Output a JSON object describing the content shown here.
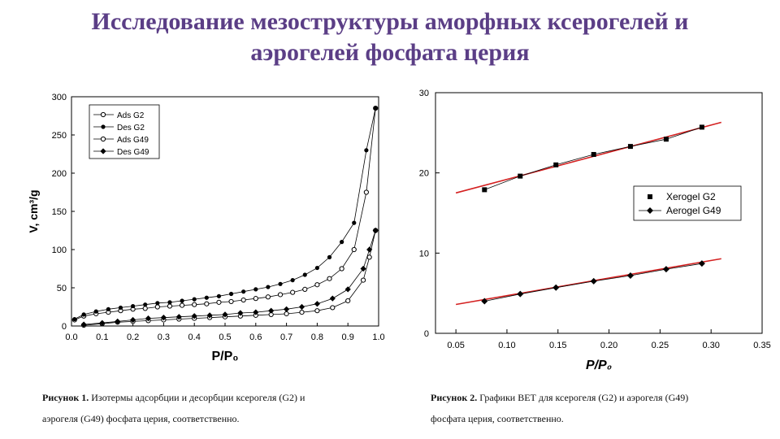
{
  "slide": {
    "title_line1": "Исследование мезоструктуры аморфных ксерогелей и",
    "title_line2": "аэрогелей фосфата церия",
    "accent_color": "#5b3e86"
  },
  "captions": {
    "fig1_label": "Рисунок 1.",
    "fig1_text": "Изотермы адсорбции и десорбции ксерогеля (G2) и",
    "fig1_text2": "аэрогеля (G49) фосфата церия, соответственно.",
    "fig2_label": "Рисунок 2.",
    "fig2_text": "Графики ВЕТ для ксерогеля (G2) и аэрогеля  (G49)",
    "fig2_text2": "фосфата церия, соответственно."
  },
  "chart_data": [
    {
      "type": "line",
      "xlabel": "P/P₀",
      "ylabel": "V, cm³/g",
      "xlim": [
        0.0,
        1.0
      ],
      "ylim": [
        0,
        300
      ],
      "xticks": [
        "0.0",
        "0.1",
        "0.2",
        "0.3",
        "0.4",
        "0.5",
        "0.6",
        "0.7",
        "0.8",
        "0.9",
        "1.0"
      ],
      "yticks": [
        "0",
        "50",
        "100",
        "150",
        "200",
        "250",
        "300"
      ],
      "legend_position": "top-left",
      "series": [
        {
          "name": "Ads G2",
          "marker": "open-circle",
          "x": [
            0.01,
            0.04,
            0.08,
            0.12,
            0.16,
            0.2,
            0.24,
            0.28,
            0.32,
            0.36,
            0.4,
            0.44,
            0.48,
            0.52,
            0.56,
            0.6,
            0.64,
            0.68,
            0.72,
            0.76,
            0.8,
            0.84,
            0.88,
            0.92,
            0.96,
            0.99
          ],
          "y": [
            8,
            13,
            16,
            18,
            20,
            22,
            23,
            25,
            26,
            27,
            28,
            29,
            31,
            32,
            34,
            36,
            38,
            41,
            44,
            48,
            54,
            62,
            75,
            100,
            175,
            285
          ]
        },
        {
          "name": "Des G2",
          "marker": "filled-circle",
          "x": [
            0.01,
            0.04,
            0.08,
            0.12,
            0.16,
            0.2,
            0.24,
            0.28,
            0.32,
            0.36,
            0.4,
            0.44,
            0.48,
            0.52,
            0.56,
            0.6,
            0.64,
            0.68,
            0.72,
            0.76,
            0.8,
            0.84,
            0.88,
            0.92,
            0.96,
            0.99
          ],
          "y": [
            9,
            15,
            19,
            22,
            24,
            26,
            28,
            30,
            31,
            33,
            35,
            37,
            39,
            42,
            45,
            48,
            51,
            55,
            60,
            67,
            76,
            90,
            110,
            135,
            230,
            285
          ]
        },
        {
          "name": "Ads G49",
          "marker": "open-circle",
          "x": [
            0.04,
            0.1,
            0.15,
            0.2,
            0.25,
            0.3,
            0.35,
            0.4,
            0.45,
            0.5,
            0.55,
            0.6,
            0.65,
            0.7,
            0.75,
            0.8,
            0.85,
            0.9,
            0.95,
            0.97,
            0.99
          ],
          "y": [
            1,
            3,
            5,
            6,
            7,
            8,
            9,
            10,
            11,
            12,
            13,
            14,
            15,
            16,
            18,
            20,
            24,
            33,
            60,
            90,
            125
          ]
        },
        {
          "name": "Des G49",
          "marker": "filled-diamond",
          "x": [
            0.04,
            0.1,
            0.15,
            0.2,
            0.25,
            0.3,
            0.35,
            0.4,
            0.45,
            0.5,
            0.55,
            0.6,
            0.65,
            0.7,
            0.75,
            0.8,
            0.85,
            0.9,
            0.95,
            0.97,
            0.99
          ],
          "y": [
            2,
            4,
            6,
            8,
            10,
            11,
            12,
            13,
            14,
            15,
            17,
            18,
            20,
            22,
            25,
            29,
            36,
            48,
            75,
            100,
            125
          ]
        }
      ]
    },
    {
      "type": "scatter",
      "xlabel": "P/P₀",
      "xlim": [
        0.03,
        0.35
      ],
      "ylim": [
        0,
        30
      ],
      "xticks": [
        "0.05",
        "0.10",
        "0.15",
        "0.20",
        "0.25",
        "0.30",
        "0.35"
      ],
      "yticks": [
        "0",
        "10",
        "20",
        "30"
      ],
      "legend_position": "right",
      "fit_color": "#d42020",
      "series": [
        {
          "name": "Xerogel G2",
          "marker": "filled-square",
          "x": [
            0.078,
            0.113,
            0.148,
            0.185,
            0.221,
            0.256,
            0.291
          ],
          "y": [
            17.9,
            19.6,
            21.0,
            22.3,
            23.3,
            24.2,
            25.7
          ],
          "fit": [
            0.05,
            17.5,
            0.31,
            26.3
          ]
        },
        {
          "name": "Aerogel G49",
          "marker": "filled-diamond",
          "x": [
            0.078,
            0.113,
            0.148,
            0.185,
            0.221,
            0.256,
            0.291
          ],
          "y": [
            4.0,
            4.9,
            5.7,
            6.5,
            7.2,
            8.0,
            8.7
          ],
          "fit": [
            0.05,
            3.6,
            0.31,
            9.3
          ]
        }
      ]
    }
  ]
}
